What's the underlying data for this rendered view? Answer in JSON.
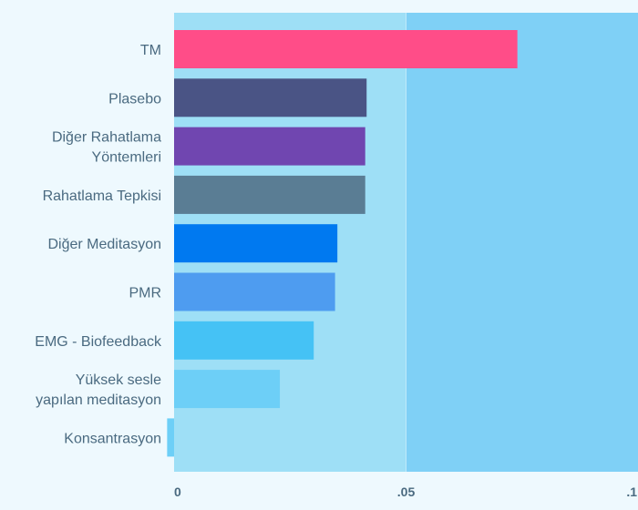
{
  "chart_data": {
    "type": "bar",
    "orientation": "horizontal",
    "title": "",
    "xlabel": "",
    "ylabel": "",
    "xlim": [
      0,
      0.1
    ],
    "x_ticks": [
      {
        "value": 0,
        "label": "0"
      },
      {
        "value": 0.05,
        "label": ".05"
      },
      {
        "value": 0.1,
        "label": ".1"
      }
    ],
    "categories": [
      [
        "TM"
      ],
      [
        "Plasebo"
      ],
      [
        "Diğer Rahatlama",
        "Yöntemleri"
      ],
      [
        "Rahatlama Tepkisi"
      ],
      [
        "Diğer Meditasyon"
      ],
      [
        "PMR"
      ],
      [
        "EMG - Biofeedback"
      ],
      [
        "Yüksek sesle",
        "yapılan meditasyon"
      ],
      [
        "Konsantrasyon"
      ]
    ],
    "values": [
      0.074,
      0.0415,
      0.0412,
      0.0412,
      0.0352,
      0.0347,
      0.0301,
      0.0228,
      -0.0015
    ],
    "colors": [
      "#ff4d88",
      "#4a5485",
      "#7046b0",
      "#5a7d94",
      "#0079f0",
      "#4e9cf0",
      "#45c2f5",
      "#6dcff7",
      "#6dcff7"
    ],
    "background_bands": [
      "#9edff6",
      "#7fd0f6"
    ]
  }
}
